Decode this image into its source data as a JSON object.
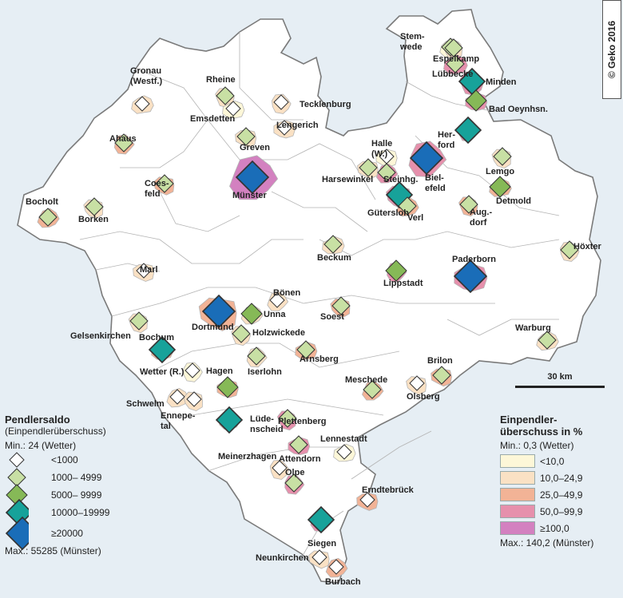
{
  "copyright": "© Geko 2016",
  "scale_label": "30 km",
  "colors": {
    "c1": "#fdf7d8",
    "c2": "#fae1c4",
    "c3": "#f2b396",
    "c4": "#e690ac",
    "c5": "#d381c0",
    "white": "#ffffff",
    "border": "#b4b4b4",
    "outline": "#7a7a7a",
    "sym_white": "#ffffff",
    "sym_light": "#c8e0a4",
    "sym_mid": "#86b957",
    "sym_teal": "#17a29a",
    "sym_blue": "#1a6db8"
  },
  "legend_left": {
    "title": "Pendlersaldo",
    "subtitle": "(Einpendlerüberschuss)",
    "min": "Min.: 24 (Wetter)",
    "max": "Max.: 55285 (Münster)",
    "classes": [
      {
        "label": "<1000",
        "symbol": "sym_white",
        "size": 9
      },
      {
        "label": "1000– 4999",
        "symbol": "sym_light",
        "size": 11
      },
      {
        "label": "5000– 9999",
        "symbol": "sym_mid",
        "size": 13
      },
      {
        "label": "10000–19999",
        "symbol": "sym_teal",
        "size": 16
      },
      {
        "label": "≥20000",
        "symbol": "sym_blue",
        "size": 20
      }
    ]
  },
  "legend_right": {
    "title_line1": "Einpendler-",
    "title_line2": "überschuss in %",
    "min": "Min.: 0,3 (Wetter)",
    "max": "Max.: 140,2 (Münster)",
    "classes": [
      {
        "label": "<10,0",
        "color": "c1"
      },
      {
        "label": "10,0–24,9",
        "color": "c2"
      },
      {
        "label": "25,0–49,9",
        "color": "c3"
      },
      {
        "label": "50,0–99,9",
        "color": "c4"
      },
      {
        "label": "≥100,0",
        "color": "c5"
      }
    ]
  },
  "towns": [
    {
      "name": "Gronau (Westf.)",
      "sym": 0,
      "fill": 1
    },
    {
      "name": "Rheine",
      "sym": 1,
      "fill": 1
    },
    {
      "name": "Emsdetten",
      "sym": 0,
      "fill": 0
    },
    {
      "name": "Tecklenburg",
      "sym": 0,
      "fill": 1
    },
    {
      "name": "Lengerich",
      "sym": 0,
      "fill": 1
    },
    {
      "name": "Ahaus",
      "sym": 1,
      "fill": 2
    },
    {
      "name": "Greven",
      "sym": 1,
      "fill": 1
    },
    {
      "name": "Münster",
      "sym": 4,
      "fill": 4
    },
    {
      "name": "Coesfeld",
      "sym": 1,
      "fill": 2
    },
    {
      "name": "Bocholt",
      "sym": 1,
      "fill": 2
    },
    {
      "name": "Borken",
      "sym": 1,
      "fill": 1
    },
    {
      "name": "Stemwede",
      "sym": 1,
      "fill": 0
    },
    {
      "name": "Espelkamp",
      "sym": 1,
      "fill": 1
    },
    {
      "name": "Lübbecke",
      "sym": 1,
      "fill": 3
    },
    {
      "name": "Minden",
      "sym": 3,
      "fill": 3
    },
    {
      "name": "Bad Oeynhsn.",
      "sym": 2,
      "fill": 3
    },
    {
      "name": "Herford",
      "sym": 3,
      "fill": 3
    },
    {
      "name": "Halle (W.)",
      "sym": 0,
      "fill": 0
    },
    {
      "name": "Bielefeld",
      "sym": 4,
      "fill": 3
    },
    {
      "name": "Harsewinkel",
      "sym": 1,
      "fill": 1
    },
    {
      "name": "Steinhg.",
      "sym": 1,
      "fill": 3
    },
    {
      "name": "Gütersloh",
      "sym": 3,
      "fill": 3
    },
    {
      "name": "Verl",
      "sym": 1,
      "fill": 2
    },
    {
      "name": "Lemgo",
      "sym": 1,
      "fill": 1
    },
    {
      "name": "Detmold",
      "sym": 2,
      "fill": 2
    },
    {
      "name": "Aug.-dorf",
      "sym": 1,
      "fill": 2
    },
    {
      "name": "Beckum",
      "sym": 1,
      "fill": 1
    },
    {
      "name": "Höxter",
      "sym": 1,
      "fill": 1
    },
    {
      "name": "Paderborn",
      "sym": 4,
      "fill": 3
    },
    {
      "name": "Lippstadt",
      "sym": 2,
      "fill": 3
    },
    {
      "name": "Marl",
      "sym": 0,
      "fill": 1
    },
    {
      "name": "Bönen",
      "sym": 0,
      "fill": 1
    },
    {
      "name": "Dortmund",
      "sym": 4,
      "fill": 2
    },
    {
      "name": "Unna",
      "sym": 2,
      "fill": 1
    },
    {
      "name": "Soest",
      "sym": 1,
      "fill": 2
    },
    {
      "name": "Warburg",
      "sym": 1,
      "fill": 1
    },
    {
      "name": "Gelsenkirchen",
      "sym": 1,
      "fill": 1
    },
    {
      "name": "Bochum",
      "sym": 3,
      "fill": 2
    },
    {
      "name": "Holzwickede",
      "sym": 1,
      "fill": 1
    },
    {
      "name": "Arnsberg",
      "sym": 1,
      "fill": 2
    },
    {
      "name": "Wetter (R.)",
      "sym": 0,
      "fill": 0
    },
    {
      "name": "Hagen",
      "sym": 2,
      "fill": 2
    },
    {
      "name": "Iserlohn",
      "sym": 1,
      "fill": 1
    },
    {
      "name": "Brilon",
      "sym": 1,
      "fill": 2
    },
    {
      "name": "Meschede",
      "sym": 1,
      "fill": 2
    },
    {
      "name": "Olsberg",
      "sym": 0,
      "fill": 1
    },
    {
      "name": "Schwelm",
      "sym": 0,
      "fill": 1
    },
    {
      "name": "Ennepetal",
      "sym": 0,
      "fill": 1
    },
    {
      "name": "Lüdenscheid",
      "sym": 3,
      "fill": 2
    },
    {
      "name": "Plettenberg",
      "sym": 1,
      "fill": 3
    },
    {
      "name": "Lennestadt",
      "sym": 0,
      "fill": 0
    },
    {
      "name": "Meinerzhagen",
      "sym": 0,
      "fill": 1
    },
    {
      "name": "Attendorn",
      "sym": 1,
      "fill": 3
    },
    {
      "name": "Olpe",
      "sym": 1,
      "fill": 3
    },
    {
      "name": "Erndtebrück",
      "sym": 0,
      "fill": 2
    },
    {
      "name": "Siegen",
      "sym": 3,
      "fill": 3
    },
    {
      "name": "Neunkirchen",
      "sym": 0,
      "fill": 1
    },
    {
      "name": "Burbach",
      "sym": 0,
      "fill": 2
    }
  ]
}
